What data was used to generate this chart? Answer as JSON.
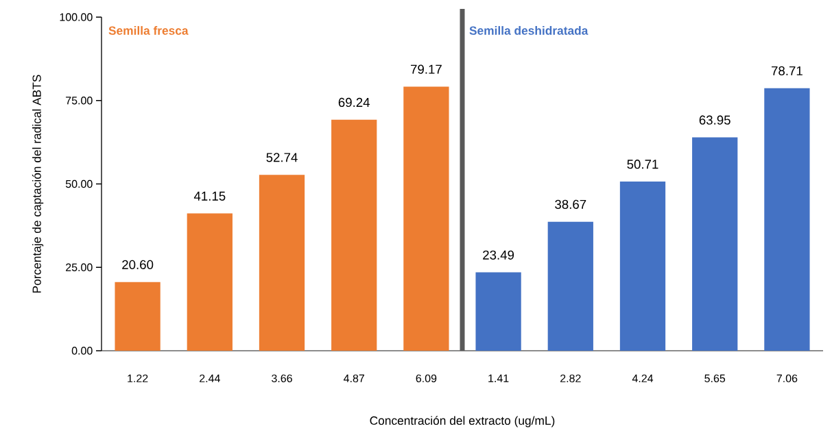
{
  "chart_data": {
    "type": "bar",
    "xlabel": "Concentración del extracto (ug/mL)",
    "ylabel": "Porcentaje de captación del radical ABTS",
    "categories": [
      "1.22",
      "2.44",
      "3.66",
      "4.87",
      "6.09",
      "1.41",
      "2.82",
      "4.24",
      "5.65",
      "7.06"
    ],
    "series": [
      {
        "name": "Semilla fresca",
        "color": "#ed7d31",
        "values": [
          20.6,
          41.15,
          52.74,
          69.24,
          79.17,
          null,
          null,
          null,
          null,
          null
        ],
        "value_labels": [
          "20.60",
          "41.15",
          "52.74",
          "69.24",
          "79.17",
          null,
          null,
          null,
          null,
          null
        ]
      },
      {
        "name": "Semilla deshidratada",
        "color": "#4472c4",
        "values": [
          null,
          null,
          null,
          null,
          null,
          23.49,
          38.67,
          50.71,
          63.95,
          78.71
        ],
        "value_labels": [
          null,
          null,
          null,
          null,
          null,
          "23.49",
          "38.67",
          "50.71",
          "63.95",
          "78.71"
        ]
      }
    ],
    "ylim": [
      0,
      100
    ],
    "yticks": [
      {
        "value": 0,
        "label": "0.00"
      },
      {
        "value": 25,
        "label": "25.00"
      },
      {
        "value": 50,
        "label": "50.00"
      },
      {
        "value": 75,
        "label": "75.00"
      },
      {
        "value": 100,
        "label": "100.00"
      }
    ],
    "grid": false
  }
}
